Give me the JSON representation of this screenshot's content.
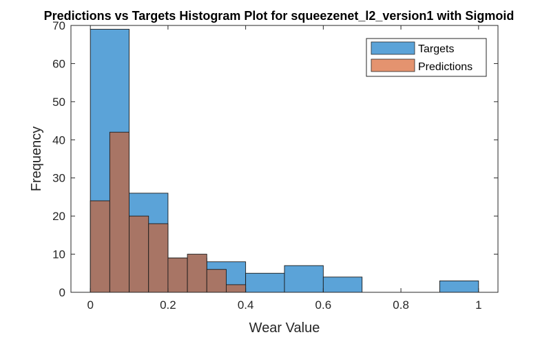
{
  "chart_data": {
    "type": "bar",
    "title": "Predictions vs Targets Histogram Plot for squeezenet_l2_version1 with Sigmoid",
    "xlabel": "Wear Value",
    "ylabel": "Frequency",
    "xlim": [
      -0.05,
      1.05
    ],
    "ylim": [
      0,
      70
    ],
    "xticks": [
      0,
      0.2,
      0.4,
      0.6,
      0.8,
      1
    ],
    "xtick_labels": [
      "0",
      "0.2",
      "0.4",
      "0.6",
      "0.8",
      "1"
    ],
    "yticks": [
      0,
      10,
      20,
      30,
      40,
      50,
      60,
      70
    ],
    "ytick_labels": [
      "0",
      "10",
      "20",
      "30",
      "40",
      "50",
      "60",
      "70"
    ],
    "grid": false,
    "legend_position": "top-right",
    "series": [
      {
        "name": "Targets",
        "color": "#5ba3d8",
        "bins": [
          {
            "x0": 0.0,
            "x1": 0.1,
            "count": 69
          },
          {
            "x0": 0.1,
            "x1": 0.2,
            "count": 26
          },
          {
            "x0": 0.2,
            "x1": 0.3,
            "count": 9
          },
          {
            "x0": 0.3,
            "x1": 0.4,
            "count": 8
          },
          {
            "x0": 0.4,
            "x1": 0.5,
            "count": 5
          },
          {
            "x0": 0.5,
            "x1": 0.6,
            "count": 7
          },
          {
            "x0": 0.6,
            "x1": 0.7,
            "count": 4
          },
          {
            "x0": 0.7,
            "x1": 0.8,
            "count": 0
          },
          {
            "x0": 0.8,
            "x1": 0.9,
            "count": 0
          },
          {
            "x0": 0.9,
            "x1": 1.0,
            "count": 3
          }
        ]
      },
      {
        "name": "Predictions",
        "color": "#e4936f",
        "bins": [
          {
            "x0": 0.0,
            "x1": 0.05,
            "count": 24
          },
          {
            "x0": 0.05,
            "x1": 0.1,
            "count": 42
          },
          {
            "x0": 0.1,
            "x1": 0.15,
            "count": 20
          },
          {
            "x0": 0.15,
            "x1": 0.2,
            "count": 18
          },
          {
            "x0": 0.2,
            "x1": 0.25,
            "count": 9
          },
          {
            "x0": 0.25,
            "x1": 0.3,
            "count": 10
          },
          {
            "x0": 0.3,
            "x1": 0.35,
            "count": 6
          },
          {
            "x0": 0.35,
            "x1": 0.4,
            "count": 2
          }
        ]
      }
    ],
    "overlap_color": "#a87565"
  }
}
